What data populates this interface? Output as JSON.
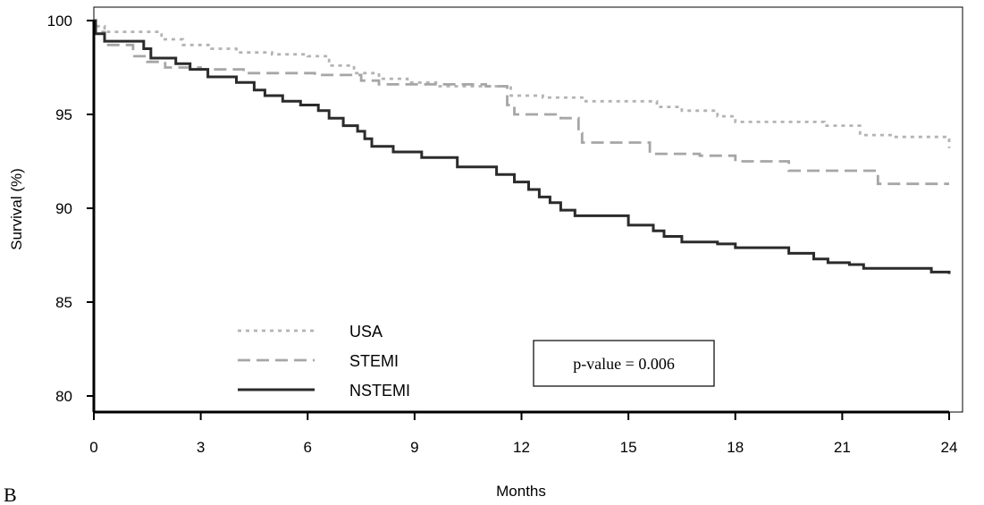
{
  "chart_data": {
    "type": "line",
    "title": "",
    "panel_label": "B",
    "xlabel": "Months",
    "ylabel": "Survival (%)",
    "xlim": [
      0,
      24
    ],
    "ylim": [
      80,
      100
    ],
    "xticks": [
      0,
      3,
      6,
      9,
      12,
      15,
      18,
      21,
      24
    ],
    "yticks": [
      80,
      85,
      90,
      95,
      100
    ],
    "grid": false,
    "legend_position": "bottom-left",
    "annotation": "p-value = 0.006",
    "series": [
      {
        "name": "USA",
        "style": "dotted",
        "color": "#b3b3b3",
        "x": [
          0,
          0.05,
          0.3,
          1.5,
          1.9,
          2.5,
          3.3,
          4.0,
          5.0,
          6.0,
          6.6,
          7.3,
          8.0,
          8.8,
          9.6,
          10.5,
          11.4,
          11.7,
          12.6,
          13.8,
          15.8,
          16.5,
          17.5,
          18.0,
          20.5,
          21.5,
          22.5,
          24.0
        ],
        "y": [
          100,
          99.7,
          99.4,
          99.4,
          99.0,
          98.7,
          98.5,
          98.3,
          98.2,
          98.1,
          97.6,
          97.2,
          96.9,
          96.7,
          96.5,
          96.5,
          96.5,
          96.0,
          95.9,
          95.7,
          95.4,
          95.2,
          94.9,
          94.6,
          94.4,
          93.9,
          93.8,
          93.2
        ]
      },
      {
        "name": "STEMI",
        "style": "dashed",
        "color": "#a6a6a6",
        "x": [
          0,
          0.05,
          0.3,
          1.1,
          1.5,
          2.0,
          3.0,
          4.2,
          6.2,
          7.5,
          8.0,
          11.0,
          11.6,
          11.8,
          13.1,
          13.6,
          13.7,
          15.2,
          15.6,
          17.0,
          18.0,
          19.5,
          22.0,
          24.0
        ],
        "y": [
          100,
          99.4,
          98.7,
          98.1,
          97.8,
          97.5,
          97.4,
          97.2,
          97.1,
          96.8,
          96.6,
          96.5,
          95.5,
          95.0,
          94.8,
          94.0,
          93.5,
          93.5,
          92.9,
          92.8,
          92.5,
          92.0,
          91.3,
          91.3
        ]
      },
      {
        "name": "NSTEMI",
        "style": "solid",
        "color": "#2b2b2b",
        "x": [
          0,
          0.05,
          0.3,
          1.4,
          1.6,
          2.3,
          2.7,
          3.2,
          4.0,
          4.5,
          4.8,
          5.3,
          5.8,
          6.3,
          6.6,
          7.0,
          7.4,
          7.6,
          7.8,
          8.4,
          9.2,
          10.2,
          11.3,
          11.8,
          12.2,
          12.5,
          12.8,
          13.1,
          13.5,
          15.0,
          15.7,
          16.0,
          16.5,
          17.5,
          18.0,
          19.5,
          20.2,
          20.6,
          21.2,
          21.6,
          23.5,
          24.0
        ],
        "y": [
          100,
          99.3,
          98.9,
          98.5,
          98.0,
          97.7,
          97.4,
          97.0,
          96.7,
          96.3,
          96.0,
          95.7,
          95.5,
          95.2,
          94.8,
          94.4,
          94.1,
          93.7,
          93.3,
          93.0,
          92.7,
          92.2,
          91.8,
          91.4,
          91.0,
          90.6,
          90.3,
          89.9,
          89.6,
          89.1,
          88.8,
          88.5,
          88.2,
          88.1,
          87.9,
          87.6,
          87.3,
          87.1,
          87.0,
          86.8,
          86.6,
          86.5
        ]
      }
    ]
  }
}
